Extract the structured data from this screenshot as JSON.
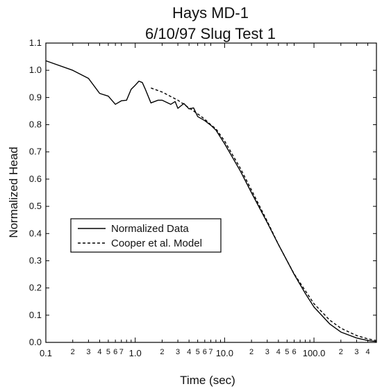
{
  "chart_data": {
    "type": "line",
    "title": "Hays MD-1",
    "subtitle": "6/10/97 Slug Test 1",
    "xlabel": "Time (sec)",
    "ylabel": "Normalized Head",
    "xscale": "log",
    "xlim": [
      0.1,
      500
    ],
    "ylim": [
      0.0,
      1.1
    ],
    "grid": false,
    "legend_position": "center-left",
    "x_major_ticks": [
      "0.1",
      "1.0",
      "10.0",
      "100.0"
    ],
    "x_minor_ticks": [
      {
        "x": 0.2,
        "label": "2"
      },
      {
        "x": 0.3,
        "label": "3"
      },
      {
        "x": 0.4,
        "label": "4"
      },
      {
        "x": 0.5,
        "label": "5"
      },
      {
        "x": 0.6,
        "label": "6"
      },
      {
        "x": 0.7,
        "label": "7"
      },
      {
        "x": 2,
        "label": "2"
      },
      {
        "x": 3,
        "label": "3"
      },
      {
        "x": 4,
        "label": "4"
      },
      {
        "x": 5,
        "label": "5"
      },
      {
        "x": 6,
        "label": "6"
      },
      {
        "x": 7,
        "label": "7"
      },
      {
        "x": 20,
        "label": "2"
      },
      {
        "x": 30,
        "label": "3"
      },
      {
        "x": 40,
        "label": "4"
      },
      {
        "x": 50,
        "label": "5"
      },
      {
        "x": 60,
        "label": "6"
      },
      {
        "x": 200,
        "label": "2"
      },
      {
        "x": 300,
        "label": "3"
      },
      {
        "x": 400,
        "label": "4"
      }
    ],
    "y_ticks": [
      "0.0",
      "0.1",
      "0.2",
      "0.3",
      "0.4",
      "0.5",
      "0.6",
      "0.7",
      "0.8",
      "0.9",
      "1.0",
      "1.1"
    ],
    "series": [
      {
        "name": "Normalized Data",
        "style": "solid",
        "color": "#000000",
        "x": [
          0.1,
          0.2,
          0.3,
          0.4,
          0.5,
          0.6,
          0.7,
          0.8,
          0.9,
          1.0,
          1.1,
          1.2,
          1.3,
          1.5,
          1.8,
          2.0,
          2.5,
          2.8,
          3.0,
          3.5,
          4.0,
          4.5,
          5.0,
          6.0,
          7.0,
          8.0,
          10.0,
          15.0,
          20.0,
          30.0,
          40.0,
          50.0,
          60.0,
          80.0,
          100.0,
          150.0,
          200.0,
          300.0,
          400.0,
          500.0
        ],
        "y": [
          1.035,
          1.0,
          0.97,
          0.915,
          0.905,
          0.875,
          0.888,
          0.89,
          0.93,
          0.945,
          0.96,
          0.955,
          0.93,
          0.88,
          0.89,
          0.89,
          0.875,
          0.885,
          0.86,
          0.878,
          0.858,
          0.862,
          0.83,
          0.815,
          0.798,
          0.78,
          0.73,
          0.63,
          0.55,
          0.44,
          0.36,
          0.3,
          0.25,
          0.18,
          0.13,
          0.068,
          0.038,
          0.016,
          0.007,
          0.003
        ]
      },
      {
        "name": "Cooper et al. Model",
        "style": "dashed",
        "color": "#000000",
        "x": [
          1.5,
          2.0,
          3.0,
          4.0,
          5.0,
          6.0,
          7.0,
          8.0,
          10.0,
          15.0,
          20.0,
          30.0,
          40.0,
          50.0,
          60.0,
          80.0,
          100.0,
          150.0,
          200.0,
          300.0,
          400.0,
          500.0
        ],
        "y": [
          0.935,
          0.92,
          0.89,
          0.862,
          0.84,
          0.82,
          0.8,
          0.785,
          0.74,
          0.64,
          0.56,
          0.445,
          0.36,
          0.3,
          0.252,
          0.19,
          0.142,
          0.082,
          0.052,
          0.025,
          0.013,
          0.007
        ]
      }
    ]
  }
}
